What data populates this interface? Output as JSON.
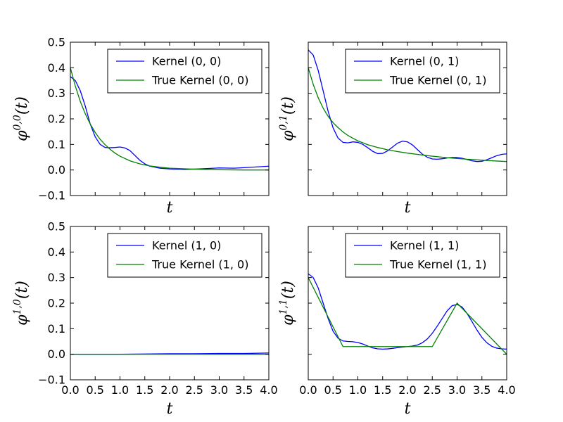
{
  "chart_data": [
    {
      "type": "line",
      "xlabel": "t",
      "ylabel": "φ",
      "ylabel_sup": "0,0",
      "ylabel_arg": "(t)",
      "xlim": [
        0,
        4
      ],
      "ylim": [
        -0.1,
        0.5
      ],
      "xticks": [
        "0.0",
        "0.5",
        "1.0",
        "1.5",
        "2.0",
        "2.5",
        "3.0",
        "3.5",
        "4.0"
      ],
      "yticks": [
        "−0.1",
        "0.0",
        "0.1",
        "0.2",
        "0.3",
        "0.4",
        "0.5"
      ],
      "show_xticklabels": false,
      "show_yticklabels": true,
      "show_xlabel": true,
      "legend_position": "top-right",
      "grid": false,
      "series": [
        {
          "name": "Kernel (0, 0)",
          "color": "#0000ff",
          "x": [
            0,
            0.1,
            0.2,
            0.3,
            0.4,
            0.5,
            0.6,
            0.7,
            0.8,
            0.9,
            1.0,
            1.1,
            1.2,
            1.3,
            1.4,
            1.5,
            1.6,
            1.8,
            2.0,
            2.3,
            2.6,
            2.9,
            3.0,
            3.3,
            3.6,
            4.0
          ],
          "y": [
            0.365,
            0.35,
            0.31,
            0.25,
            0.18,
            0.13,
            0.1,
            0.088,
            0.087,
            0.088,
            0.09,
            0.086,
            0.076,
            0.057,
            0.038,
            0.024,
            0.015,
            0.007,
            0.004,
            0.002,
            0.004,
            0.007,
            0.008,
            0.007,
            0.01,
            0.015
          ]
        },
        {
          "name": "True Kernel (0, 0)",
          "color": "#008000",
          "x": [
            0,
            0.1,
            0.2,
            0.3,
            0.4,
            0.5,
            0.6,
            0.7,
            0.8,
            0.9,
            1.0,
            1.2,
            1.4,
            1.6,
            1.8,
            2.0,
            2.5,
            3.0,
            3.5,
            4.0
          ],
          "y": [
            0.4,
            0.328,
            0.268,
            0.22,
            0.18,
            0.147,
            0.12,
            0.099,
            0.081,
            0.066,
            0.054,
            0.036,
            0.024,
            0.016,
            0.011,
            0.007,
            0.003,
            0.001,
            0.0,
            0.0
          ]
        }
      ]
    },
    {
      "type": "line",
      "xlabel": "t",
      "ylabel": "φ",
      "ylabel_sup": "0,1",
      "ylabel_arg": "(t)",
      "xlim": [
        0,
        4
      ],
      "ylim": [
        -0.1,
        0.5
      ],
      "xticks": [
        "0.0",
        "0.5",
        "1.0",
        "1.5",
        "2.0",
        "2.5",
        "3.0",
        "3.5",
        "4.0"
      ],
      "yticks": [
        "−0.1",
        "0.0",
        "0.1",
        "0.2",
        "0.3",
        "0.4",
        "0.5"
      ],
      "show_xticklabels": false,
      "show_yticklabels": false,
      "show_xlabel": true,
      "legend_position": "top-right",
      "grid": false,
      "series": [
        {
          "name": "Kernel (0, 1)",
          "color": "#0000ff",
          "x": [
            0,
            0.1,
            0.2,
            0.3,
            0.4,
            0.5,
            0.6,
            0.7,
            0.8,
            0.9,
            1.0,
            1.1,
            1.2,
            1.3,
            1.4,
            1.5,
            1.6,
            1.7,
            1.8,
            1.9,
            2.0,
            2.1,
            2.2,
            2.3,
            2.4,
            2.5,
            2.6,
            2.7,
            2.8,
            2.9,
            3.0,
            3.1,
            3.2,
            3.3,
            3.4,
            3.5,
            3.6,
            3.7,
            3.8,
            3.9,
            4.0
          ],
          "y": [
            0.47,
            0.45,
            0.39,
            0.31,
            0.23,
            0.165,
            0.125,
            0.108,
            0.106,
            0.11,
            0.108,
            0.1,
            0.087,
            0.073,
            0.064,
            0.065,
            0.075,
            0.09,
            0.105,
            0.113,
            0.11,
            0.098,
            0.08,
            0.062,
            0.05,
            0.043,
            0.042,
            0.044,
            0.047,
            0.049,
            0.049,
            0.046,
            0.041,
            0.036,
            0.033,
            0.034,
            0.04,
            0.048,
            0.056,
            0.061,
            0.063
          ]
        },
        {
          "name": "True Kernel (0, 1)",
          "color": "#008000",
          "x": [
            0,
            0.1,
            0.2,
            0.3,
            0.4,
            0.5,
            0.6,
            0.7,
            0.8,
            0.9,
            1.0,
            1.2,
            1.4,
            1.6,
            1.8,
            2.0,
            2.2,
            2.4,
            2.6,
            2.8,
            3.0,
            3.2,
            3.4,
            3.6,
            3.8,
            4.0
          ],
          "y": [
            0.4,
            0.335,
            0.283,
            0.242,
            0.21,
            0.185,
            0.166,
            0.149,
            0.135,
            0.124,
            0.114,
            0.099,
            0.088,
            0.079,
            0.072,
            0.066,
            0.061,
            0.056,
            0.052,
            0.048,
            0.045,
            0.042,
            0.04,
            0.037,
            0.035,
            0.033
          ]
        }
      ]
    },
    {
      "type": "line",
      "xlabel": "t",
      "ylabel": "φ",
      "ylabel_sup": "1,0",
      "ylabel_arg": "(t)",
      "xlim": [
        0,
        4
      ],
      "ylim": [
        -0.1,
        0.5
      ],
      "xticks": [
        "0.0",
        "0.5",
        "1.0",
        "1.5",
        "2.0",
        "2.5",
        "3.0",
        "3.5",
        "4.0"
      ],
      "yticks": [
        "−0.1",
        "0.0",
        "0.1",
        "0.2",
        "0.3",
        "0.4",
        "0.5"
      ],
      "show_xticklabels": true,
      "show_yticklabels": true,
      "show_xlabel": true,
      "legend_position": "top-right",
      "grid": false,
      "series": [
        {
          "name": "Kernel (1, 0)",
          "color": "#0000ff",
          "x": [
            0,
            0.5,
            1.0,
            1.5,
            2.0,
            2.5,
            3.0,
            3.5,
            4.0
          ],
          "y": [
            0.0,
            0.0,
            0.0,
            0.001,
            0.002,
            0.002,
            0.003,
            0.003,
            0.005
          ]
        },
        {
          "name": "True Kernel (1, 0)",
          "color": "#008000",
          "x": [
            0,
            4.0
          ],
          "y": [
            0.0,
            0.0
          ]
        }
      ]
    },
    {
      "type": "line",
      "xlabel": "t",
      "ylabel": "φ",
      "ylabel_sup": "1,1",
      "ylabel_arg": "(t)",
      "xlim": [
        0,
        4
      ],
      "ylim": [
        -0.1,
        0.5
      ],
      "xticks": [
        "0.0",
        "0.5",
        "1.0",
        "1.5",
        "2.0",
        "2.5",
        "3.0",
        "3.5",
        "4.0"
      ],
      "yticks": [
        "−0.1",
        "0.0",
        "0.1",
        "0.2",
        "0.3",
        "0.4",
        "0.5"
      ],
      "show_xticklabels": true,
      "show_yticklabels": false,
      "show_xlabel": true,
      "legend_position": "top-right",
      "grid": false,
      "series": [
        {
          "name": "Kernel (1, 1)",
          "color": "#0000ff",
          "x": [
            0,
            0.1,
            0.2,
            0.3,
            0.4,
            0.5,
            0.6,
            0.7,
            0.8,
            0.9,
            1.0,
            1.1,
            1.2,
            1.3,
            1.4,
            1.5,
            1.6,
            1.7,
            1.8,
            1.9,
            2.0,
            2.1,
            2.2,
            2.3,
            2.4,
            2.5,
            2.6,
            2.7,
            2.8,
            2.9,
            3.0,
            3.1,
            3.2,
            3.3,
            3.4,
            3.5,
            3.6,
            3.7,
            3.8,
            3.9,
            4.0
          ],
          "y": [
            0.315,
            0.3,
            0.26,
            0.2,
            0.14,
            0.09,
            0.063,
            0.052,
            0.05,
            0.049,
            0.046,
            0.04,
            0.032,
            0.025,
            0.021,
            0.02,
            0.021,
            0.023,
            0.026,
            0.028,
            0.03,
            0.032,
            0.036,
            0.045,
            0.06,
            0.082,
            0.11,
            0.14,
            0.17,
            0.19,
            0.195,
            0.185,
            0.16,
            0.128,
            0.095,
            0.066,
            0.045,
            0.031,
            0.024,
            0.021,
            0.02
          ]
        },
        {
          "name": "True Kernel (1, 1)",
          "color": "#008000",
          "x": [
            0,
            0.7,
            2.5,
            3.0,
            4.0
          ],
          "y": [
            0.3,
            0.03,
            0.03,
            0.2,
            0.0
          ]
        }
      ]
    }
  ]
}
